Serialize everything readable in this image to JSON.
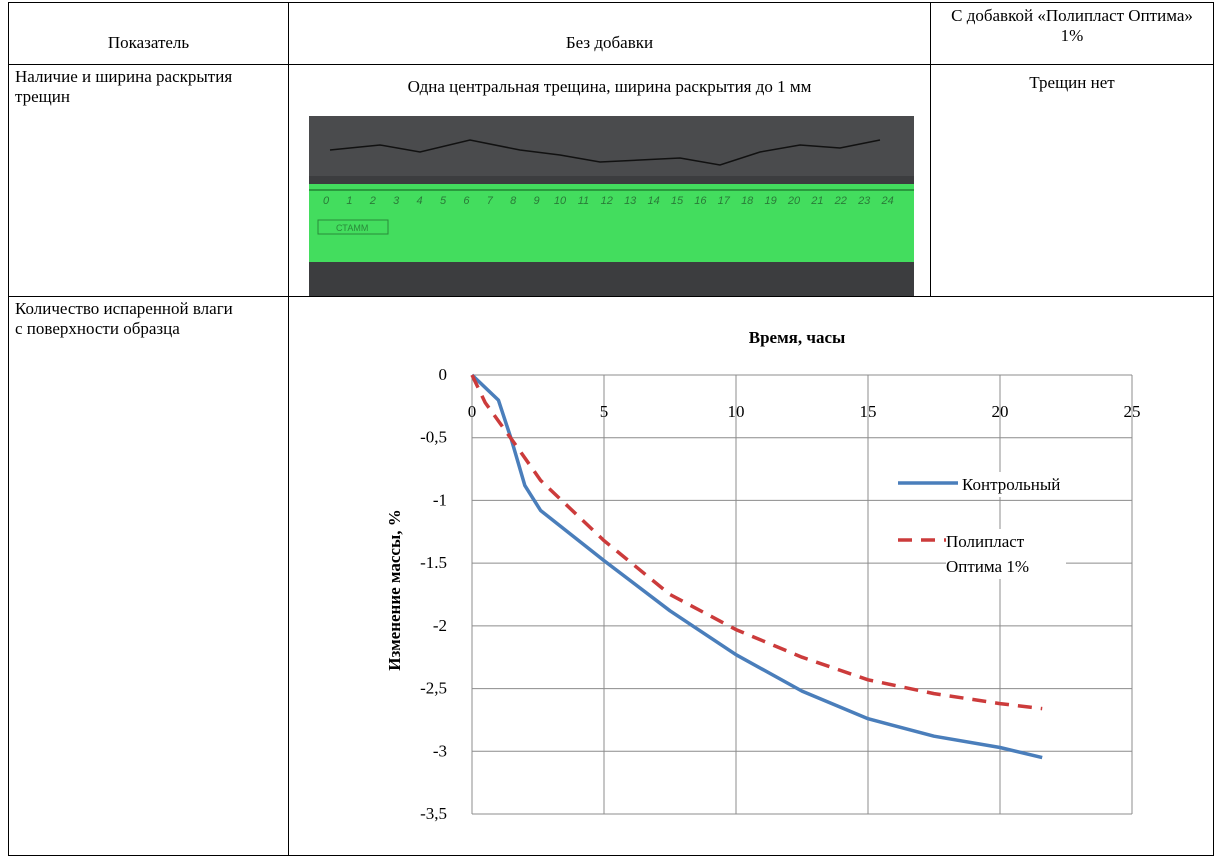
{
  "table": {
    "header": [
      "Показатель",
      "Без добавки",
      "С добавкой «Полипласт Оптима» 1%"
    ],
    "rows": [
      {
        "label": "Наличие и ширина раскрытия трещин",
        "without": "Одна центральная трещина, ширина раскрытия до 1 мм",
        "with": "Трещин нет",
        "photo": {
          "ruler_numbers": [
            0,
            1,
            2,
            3,
            4,
            5,
            6,
            7,
            8,
            9,
            10,
            11,
            12,
            13,
            14,
            15,
            16,
            17,
            18,
            19,
            20,
            21,
            22,
            23,
            24
          ],
          "brand": "СТАММ"
        }
      },
      {
        "label": "Количество испаренной влаги с поверхности образца"
      }
    ]
  },
  "chart": {
    "type": "line",
    "title": "Время, часы",
    "y_label": "Изменение массы, %",
    "xlim": [
      0,
      25
    ],
    "xticks": [
      0,
      5,
      10,
      15,
      20,
      25
    ],
    "ylim": [
      -3.5,
      0
    ],
    "yticks": [
      0,
      {
        "value": -0.5,
        "label": "-0,5"
      },
      -1,
      {
        "value": -1.5,
        "label": "-1.5"
      },
      -2,
      {
        "value": -2.5,
        "label": "-2,5"
      },
      -3,
      {
        "value": -3.5,
        "label": "-3,5"
      }
    ],
    "grid": true,
    "series": [
      {
        "name": "Контрольный",
        "color": "#4a7ebb",
        "dash": false,
        "x": [
          0,
          1,
          1.5,
          2,
          2.6,
          5,
          7.5,
          10,
          12.5,
          15,
          17.5,
          20,
          21.6
        ],
        "values": [
          0,
          -0.2,
          -0.52,
          -0.88,
          -1.08,
          -1.48,
          -1.88,
          -2.23,
          -2.52,
          -2.74,
          -2.88,
          -2.97,
          -3.05
        ]
      },
      {
        "name": "Полипласт Оптима 1%",
        "color": "#cc3b3b",
        "dash": true,
        "x": [
          0,
          0.5,
          1.8,
          2.6,
          5,
          7.5,
          10,
          12.5,
          15,
          17.5,
          20,
          21.6
        ],
        "values": [
          0,
          -0.22,
          -0.6,
          -0.84,
          -1.32,
          -1.75,
          -2.03,
          -2.25,
          -2.43,
          -2.54,
          -2.62,
          -2.66
        ]
      }
    ]
  }
}
